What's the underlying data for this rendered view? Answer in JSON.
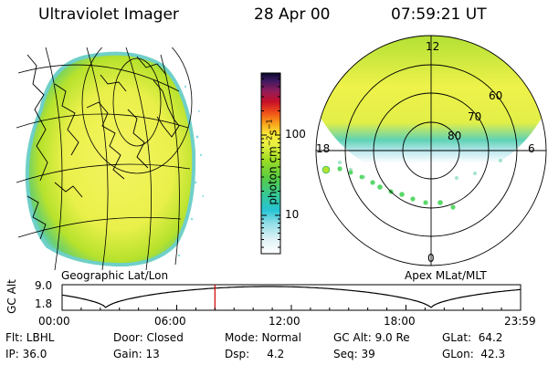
{
  "header": {
    "instrument": "Ultraviolet Imager",
    "date": "28 Apr 00",
    "time": "07:59:21 UT"
  },
  "colorbar": {
    "label": "photon cm",
    "label_sup1": "−2",
    "label_mid": "s",
    "label_sup2": "−1",
    "ticks": [
      {
        "value": 100,
        "label": "100"
      },
      {
        "value": 10,
        "label": "10"
      }
    ]
  },
  "left_map": {
    "label": "Geographic Lat/Lon"
  },
  "polar": {
    "label": "Apex MLat/MLT",
    "mlt_labels": {
      "top": "12",
      "left": "18",
      "right": "6",
      "bottom": "0"
    },
    "lat_labels": [
      "60",
      "70",
      "80"
    ]
  },
  "altitude_plot": {
    "ylabel": "GC Alt",
    "yticks": [
      "9.0",
      "1.8"
    ],
    "xticks": [
      "00:00",
      "06:00",
      "12:00",
      "18:00",
      "23:59"
    ],
    "marker_time_hours": 8.0,
    "line_color": "#000000",
    "marker_color": "#d00000"
  },
  "status": {
    "row1": {
      "filter": "Flt: LBHL",
      "door": "Door: Closed",
      "mode": "Mode: Normal",
      "gcalt": "GC Alt: 9.0 Re",
      "glat": "GLat:  64.2"
    },
    "row2": {
      "ip": "IP: 36.0",
      "gain": "Gain: 13",
      "dsp": "Dsp:     4.2",
      "seq": "Seq: 39",
      "glon": "GLon:  42.3"
    }
  }
}
